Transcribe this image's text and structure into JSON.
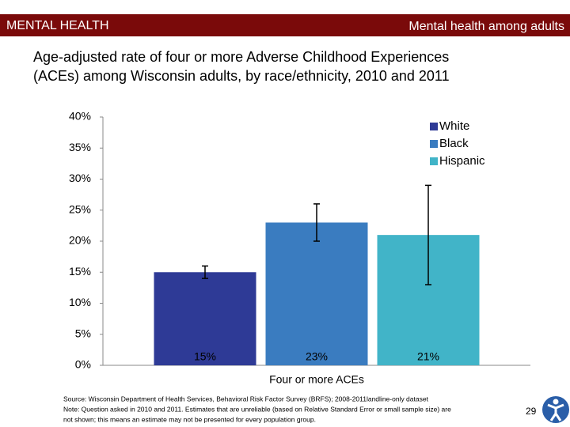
{
  "header": {
    "left": "MENTAL HEALTH",
    "right": "Mental health among adults"
  },
  "chart_data": {
    "type": "bar",
    "title_lines": [
      "Age-adjusted rate of four or more Adverse Childhood Experiences",
      "(ACEs) among Wisconsin adults, by race/ethnicity, 2010 and 2011"
    ],
    "categories": [
      "Four or more ACEs"
    ],
    "series": [
      {
        "name": "White",
        "color": "#2e3a96",
        "values": [
          15
        ],
        "value_labels": [
          "15%"
        ],
        "errors": [
          1
        ]
      },
      {
        "name": "Black",
        "color": "#3a7cc0",
        "values": [
          23
        ],
        "value_labels": [
          "23%"
        ],
        "errors": [
          3
        ]
      },
      {
        "name": "Hispanic",
        "color": "#41b4c8",
        "values": [
          21
        ],
        "value_labels": [
          "21%"
        ],
        "errors": [
          8
        ]
      }
    ],
    "ylim": [
      0,
      40
    ],
    "yticks": [
      {
        "value": 0,
        "label": "0%"
      },
      {
        "value": 5,
        "label": "5%"
      },
      {
        "value": 10,
        "label": "10%"
      },
      {
        "value": 15,
        "label": "15%"
      },
      {
        "value": 20,
        "label": "20%"
      },
      {
        "value": 25,
        "label": "25%"
      },
      {
        "value": 30,
        "label": "30%"
      },
      {
        "value": 35,
        "label": "35%"
      },
      {
        "value": 40,
        "label": "40%"
      }
    ],
    "legend": "upper right"
  },
  "footer": {
    "lines": [
      "Source: Wisconsin Department of Health Services, Behavioral Risk Factor Survey (BRFS); 2008-2011landline-only dataset",
      "Note: Question asked in 2010 and 2011. Estimates that are unreliable (based on Relative Standard Error or small sample size) are",
      "not shown; this means an estimate may not be presented for every population group."
    ]
  },
  "page_number": 29
}
